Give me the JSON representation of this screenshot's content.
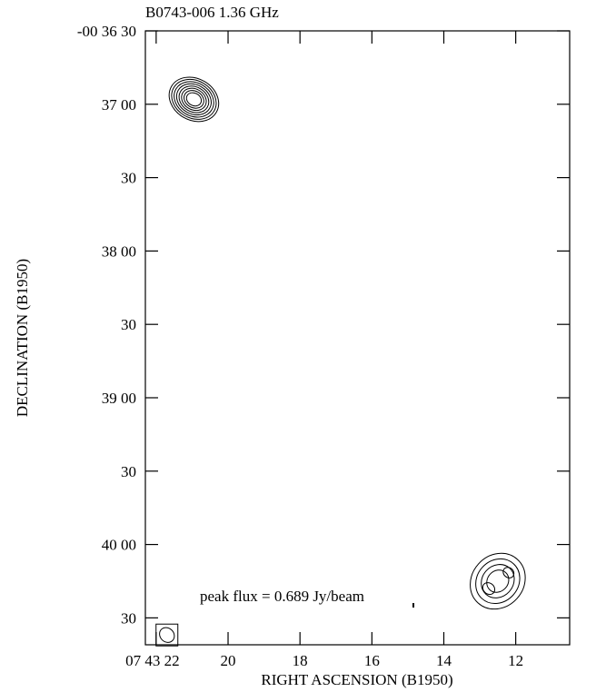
{
  "chart_data": {
    "type": "contour",
    "title": "B0743-006  1.36 GHz",
    "xlabel": "RIGHT ASCENSION (B1950)",
    "ylabel": "DECLINATION (B1950)",
    "x_ticks": [
      {
        "value": 22,
        "label": "07 43 22"
      },
      {
        "value": 20,
        "label": "20"
      },
      {
        "value": 18,
        "label": "18"
      },
      {
        "value": 16,
        "label": "16"
      },
      {
        "value": 14,
        "label": "14"
      },
      {
        "value": 12,
        "label": "12"
      }
    ],
    "y_ticks": [
      {
        "value": 30,
        "label": "-00 36 30"
      },
      {
        "value": 60,
        "label": "37 00"
      },
      {
        "value": 90,
        "label": "30"
      },
      {
        "value": 120,
        "label": "38 00"
      },
      {
        "value": 150,
        "label": "30"
      },
      {
        "value": 180,
        "label": "39 00"
      },
      {
        "value": 210,
        "label": "30"
      },
      {
        "value": 240,
        "label": "40 00"
      },
      {
        "value": 270,
        "label": "30"
      }
    ],
    "xlim": [
      22.3,
      10.5
    ],
    "ylim": [
      30,
      281
    ],
    "y_units": "arcsec south of -00 36 00",
    "x_units": "seconds of RA after 07 43 00",
    "annotation": "peak flux =  0.689 Jy/beam",
    "sources": [
      {
        "name": "component-1",
        "ra": 20.95,
        "dec": 58,
        "rx": 0.72,
        "ry": 8.5,
        "angle": 30,
        "levels": 8
      },
      {
        "name": "component-2",
        "ra": 12.5,
        "dec": 255,
        "rx": 0.72,
        "ry": 12,
        "angle": 42,
        "levels": 4,
        "peaks": [
          {
            "ra": 12.75,
            "dec": 258,
            "rx": 0.18,
            "ry": 2.2
          },
          {
            "ra": 12.2,
            "dec": 251.5,
            "rx": 0.16,
            "ry": 2.0
          }
        ]
      }
    ],
    "beam": {
      "ra": 21.7,
      "dec": 277,
      "rx": 0.22,
      "ry": 2.8,
      "angle": 45
    }
  }
}
